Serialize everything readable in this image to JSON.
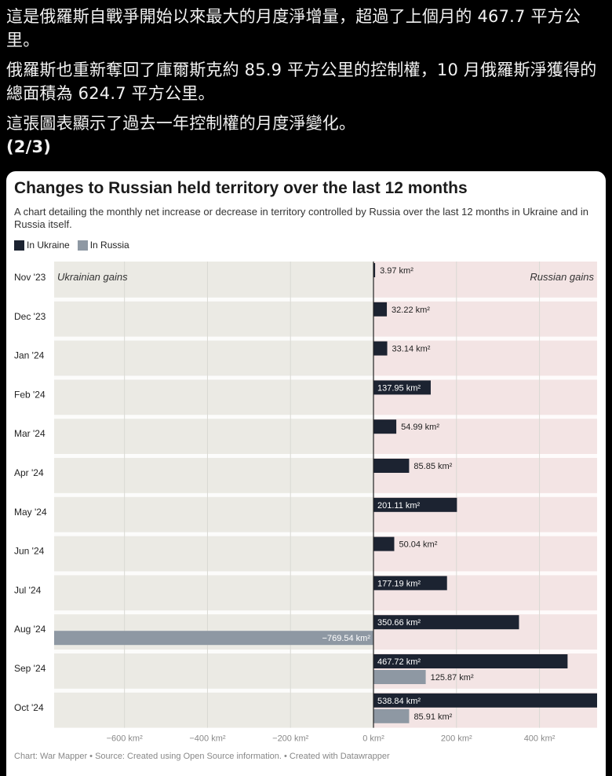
{
  "post": {
    "paragraph1": "這是俄羅斯自戰爭開始以來最大的月度淨增量，超過了上個月的 467.7 平方公里。",
    "paragraph2": "俄羅斯也重新奪回了庫爾斯克約 85.9 平方公里的控制權，10 月俄羅斯淨獲得的總面積為 624.7 平方公里。",
    "paragraph3": "這張圖表顯示了過去一年控制權的月度淨變化。",
    "part": "(2/3)"
  },
  "chart": {
    "title": "Changes to Russian held territory over the last 12 months",
    "subtitle": "A chart detailing the monthly net increase or decrease in territory controlled by Russia over the last 12 months in Ukraine and in Russia itself.",
    "footer": "Chart: War Mapper • Source: Created using Open Source information. • Created with Datawrapper",
    "left_region_label": "Ukrainian gains",
    "right_region_label": "Russian gains"
  },
  "colors": {
    "ukraine": "#1c2331",
    "russia": "#8e98a3",
    "left_bg": "#ebeae4",
    "right_bg": "#f3e4e4"
  },
  "chart_data": {
    "type": "bar",
    "orientation": "horizontal",
    "categories": [
      "Nov '23",
      "Dec '23",
      "Jan '24",
      "Feb '24",
      "Mar '24",
      "Apr '24",
      "May '24",
      "Jun '24",
      "Jul '24",
      "Aug '24",
      "Sep '24",
      "Oct '24"
    ],
    "series": [
      {
        "name": "In Ukraine",
        "values": [
          3.97,
          32.22,
          33.14,
          137.95,
          54.99,
          85.85,
          201.11,
          50.04,
          177.19,
          350.66,
          467.72,
          538.84
        ],
        "labels": [
          "3.97 km²",
          "32.22 km²",
          "33.14 km²",
          "137.95 km²",
          "54.99 km²",
          "85.85 km²",
          "201.11 km²",
          "50.04 km²",
          "177.19 km²",
          "350.66 km²",
          "467.72 km²",
          "538.84 km²"
        ]
      },
      {
        "name": "In Russia",
        "values": [
          null,
          null,
          null,
          null,
          null,
          null,
          null,
          null,
          null,
          -769.54,
          125.87,
          85.91
        ],
        "labels": [
          "",
          "",
          "",
          "",
          "",
          "",
          "",
          "",
          "",
          "−769.54 km²",
          "125.87 km²",
          "85.91 km²"
        ]
      }
    ],
    "xlim": [
      -769.54,
      538.84
    ],
    "xticks": [
      -600,
      -400,
      -200,
      0,
      200,
      400
    ],
    "xtick_labels": [
      "−600 km²",
      "−400 km²",
      "−200 km²",
      "0 km²",
      "200 km²",
      "400 km²"
    ],
    "legend_position": "top-left"
  }
}
